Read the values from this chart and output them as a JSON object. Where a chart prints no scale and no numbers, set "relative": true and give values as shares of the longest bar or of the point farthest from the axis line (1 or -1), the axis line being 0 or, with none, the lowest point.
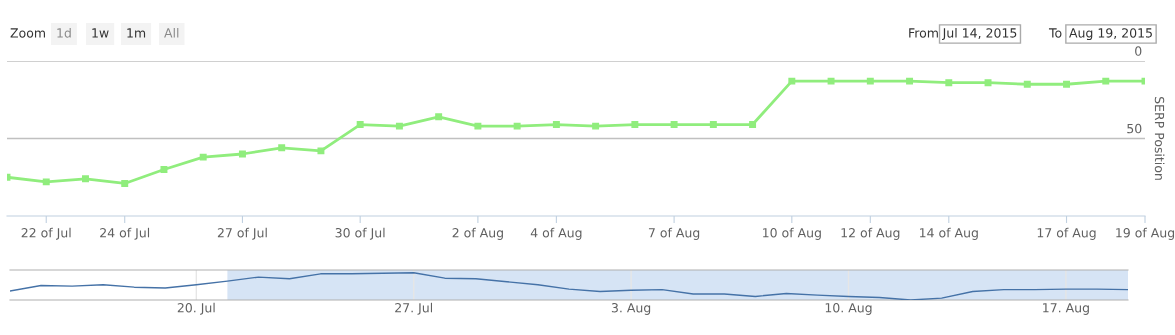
{
  "chart_data": [
    {
      "type": "line",
      "ylabel": "SERP Position",
      "annotations": [
        "Zoom",
        "1d",
        "1w",
        "1m",
        "All",
        "From",
        "Jul 14, 2015",
        "To",
        "Aug 19, 2015"
      ],
      "x": [
        "2015-07-21",
        "2015-07-22",
        "2015-07-23",
        "2015-07-24",
        "2015-07-25",
        "2015-07-26",
        "2015-07-27",
        "2015-07-28",
        "2015-07-29",
        "2015-07-30",
        "2015-07-31",
        "2015-08-01",
        "2015-08-02",
        "2015-08-03",
        "2015-08-04",
        "2015-08-05",
        "2015-08-06",
        "2015-08-07",
        "2015-08-08",
        "2015-08-09",
        "2015-08-10",
        "2015-08-11",
        "2015-08-12",
        "2015-08-13",
        "2015-08-14",
        "2015-08-15",
        "2015-08-16",
        "2015-08-17",
        "2015-08-18",
        "2015-08-19"
      ],
      "series": [
        {
          "color": "#90ed7d",
          "values": [
            75,
            78,
            76,
            79,
            70,
            62,
            60,
            56,
            58,
            41,
            42,
            36,
            42,
            42,
            41,
            42,
            41,
            41,
            41,
            41,
            13,
            13,
            13,
            13,
            14,
            14,
            15,
            15,
            13,
            13
          ]
        }
      ],
      "xlim": [
        "2015-07-21",
        "2015-08-19"
      ],
      "xticks": [
        {
          "value": "2015-07-22",
          "label": "22 of Jul"
        },
        {
          "value": "2015-07-24",
          "label": "24 of Jul"
        },
        {
          "value": "2015-07-27",
          "label": "27 of Jul"
        },
        {
          "value": "2015-07-30",
          "label": "30 of Jul"
        },
        {
          "value": "2015-08-02",
          "label": "2 of Aug"
        },
        {
          "value": "2015-08-04",
          "label": "4 of Aug"
        },
        {
          "value": "2015-08-07",
          "label": "7 of Aug"
        },
        {
          "value": "2015-08-10",
          "label": "10 of Aug"
        },
        {
          "value": "2015-08-12",
          "label": "12 of Aug"
        },
        {
          "value": "2015-08-14",
          "label": "14 of Aug"
        },
        {
          "value": "2015-08-17",
          "label": "17 of Aug"
        },
        {
          "value": "2015-08-19",
          "label": "19 of Aug"
        }
      ],
      "ylim": [
        100,
        0
      ],
      "yticks": [
        0,
        50
      ],
      "grid": "y",
      "marker": "square",
      "line_style": "solid"
    },
    {
      "type": "line",
      "relative": true,
      "tick_labels": "x",
      "grid": "x",
      "x": [
        "2015-07-14",
        "2015-07-15",
        "2015-07-16",
        "2015-07-17",
        "2015-07-18",
        "2015-07-19",
        "2015-07-20",
        "2015-07-21",
        "2015-07-22",
        "2015-07-23",
        "2015-07-24",
        "2015-07-25",
        "2015-07-26",
        "2015-07-27",
        "2015-07-28",
        "2015-07-29",
        "2015-07-30",
        "2015-07-31",
        "2015-08-01",
        "2015-08-02",
        "2015-08-03",
        "2015-08-04",
        "2015-08-05",
        "2015-08-06",
        "2015-08-07",
        "2015-08-08",
        "2015-08-09",
        "2015-08-10",
        "2015-08-11",
        "2015-08-12",
        "2015-08-13",
        "2015-08-14",
        "2015-08-15",
        "2015-08-16",
        "2015-08-17",
        "2015-08-18",
        "2015-08-19"
      ],
      "series": [
        {
          "color": "#4572a7",
          "values": [
            0.33,
            0.53,
            0.51,
            0.56,
            0.47,
            0.44,
            0.56,
            0.69,
            0.84,
            0.78,
            0.96,
            0.96,
            0.98,
            1,
            0.8,
            0.78,
            0.67,
            0.56,
            0.4,
            0.31,
            0.36,
            0.38,
            0.22,
            0.22,
            0.13,
            0.24,
            0.18,
            0.13,
            0.09,
            0,
            0.07,
            0.31,
            0.38,
            0.38,
            0.4,
            0.4,
            0.38
          ]
        }
      ],
      "xlim": [
        "2015-07-14",
        "2015-08-19"
      ],
      "xticks": [
        {
          "value": "2015-07-20",
          "label": "20. Jul"
        },
        {
          "value": "2015-07-27",
          "label": "27. Jul"
        },
        {
          "value": "2015-08-03",
          "label": "3. Aug"
        },
        {
          "value": "2015-08-10",
          "label": "10. Aug"
        },
        {
          "value": "2015-08-17",
          "label": "17. Aug"
        }
      ],
      "bands": [
        {
          "axis": "x",
          "from": "2015-07-21",
          "to": "2015-08-19",
          "color": "#d6e4f5"
        }
      ],
      "marker": "none",
      "line_style": "solid"
    }
  ]
}
